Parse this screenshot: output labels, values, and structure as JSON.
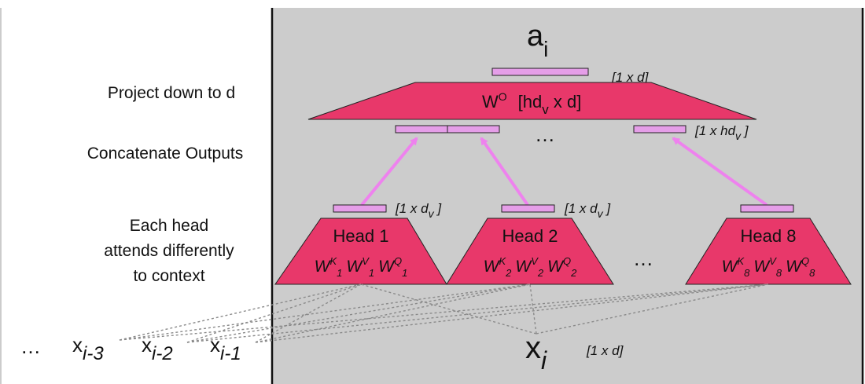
{
  "left_labels": {
    "project": "Project down to d",
    "concat": "Concatenate Outputs",
    "each_head": [
      "Each head",
      "attends differently",
      "to context"
    ]
  },
  "output": {
    "base": "a",
    "sub": "i",
    "dim": "[1 x d]"
  },
  "projection": {
    "text_left": "W",
    "text_sup": "O",
    "text_mid": "[hd",
    "text_sub": "v",
    "text_right": " x d]",
    "dim_base": "[1 x hd",
    "dim_sub": "v",
    "dim_end": " ]"
  },
  "ellipsis": "…",
  "heads": [
    {
      "title": "Head 1",
      "idx": "1",
      "dim_base": "[1 x d",
      "dim_sub": "v",
      "dim_end": " ]"
    },
    {
      "title": "Head 2",
      "idx": "2",
      "dim_base": "[1 x d",
      "dim_sub": "v",
      "dim_end": " ]"
    },
    {
      "title": "Head 8",
      "idx": "8",
      "dim_base": "[1 x d",
      "dim_sub": "v",
      "dim_end": " ]"
    }
  ],
  "weights": {
    "w": "W",
    "k": "K",
    "v": "V",
    "q": "Q"
  },
  "inputs": {
    "ellipsis": "…",
    "prev": [
      {
        "base": "x",
        "sub": "i-3"
      },
      {
        "base": "x",
        "sub": "i-2"
      },
      {
        "base": "x",
        "sub": "i-1"
      }
    ],
    "current": {
      "base": "x",
      "sub": "i"
    },
    "current_dim": "[1 x d]"
  },
  "colors": {
    "panel": "#cccccc",
    "trapezoid": "#e8386a",
    "bar": "#e59ee8",
    "arrow": "#ee82ee",
    "dots": "#8a8a8a"
  }
}
